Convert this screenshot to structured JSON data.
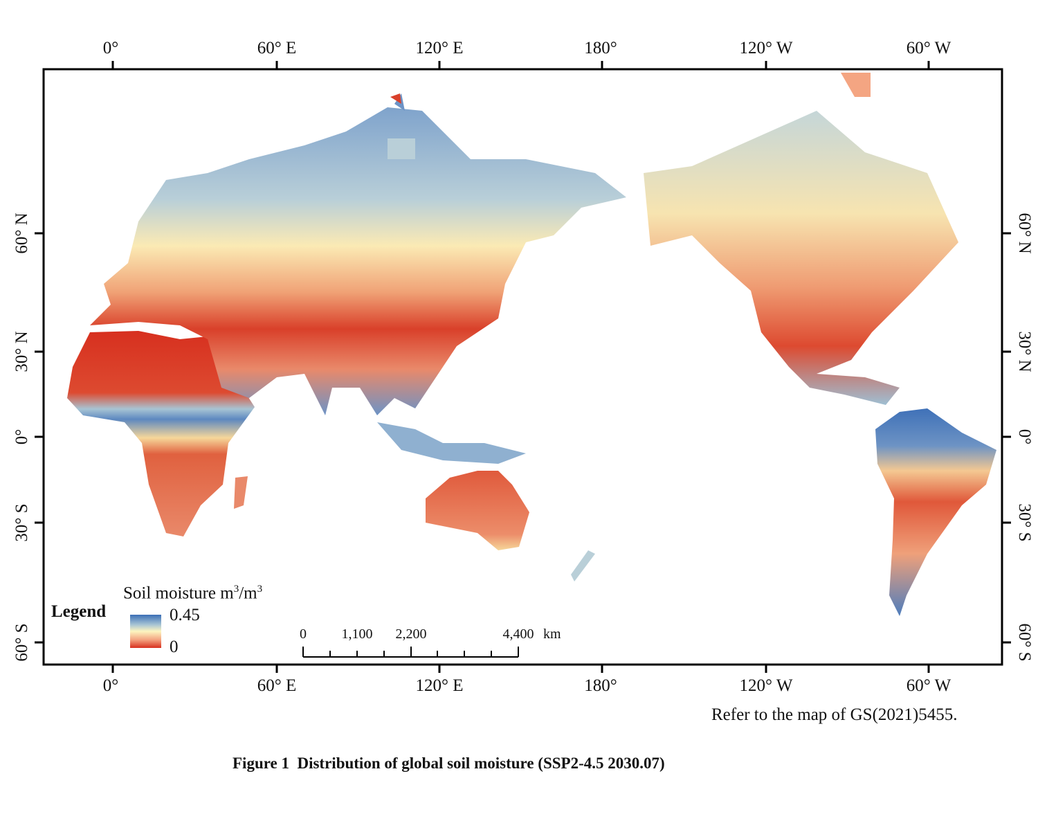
{
  "map": {
    "lon_ticks": [
      "0°",
      "60° E",
      "120° E",
      "180°",
      "120° W",
      "60° W"
    ],
    "lat_ticks": [
      "60° N",
      "30° N",
      "0°",
      "30° S",
      "60° S"
    ],
    "legend": {
      "title": "Legend",
      "variable": "Soil moisture m",
      "unit_sup1": "3",
      "unit_mid": "/m",
      "unit_sup2": "3",
      "max_label": "0.45",
      "min_label": "0",
      "colormap": [
        "#d7301f",
        "#f4a582",
        "#fdf5c0",
        "#a7c4d4",
        "#3b6fb6"
      ]
    },
    "scale_bar": {
      "labels": [
        "0",
        "1,100",
        "2,200",
        "4,400"
      ],
      "unit": "km"
    },
    "note": "Refer to the map of GS(2021)5455."
  },
  "caption": "Figure 1  Distribution of global soil moisture (SSP2-4.5 2030.07)"
}
